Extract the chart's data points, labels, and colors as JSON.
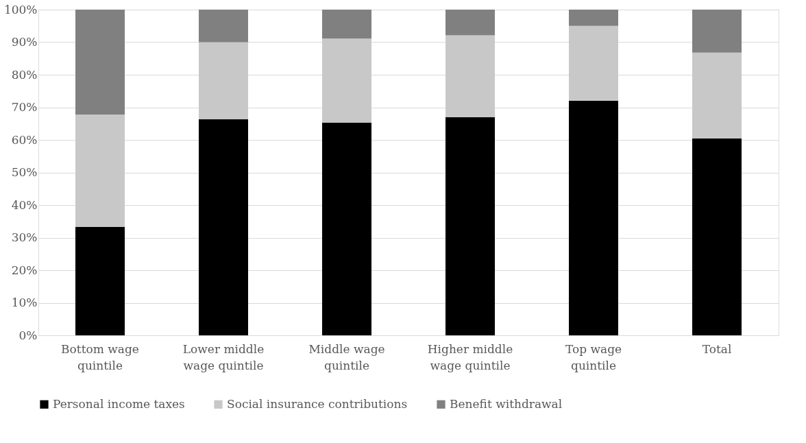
{
  "chart_data": {
    "type": "bar",
    "stacked": true,
    "categories": [
      "Bottom wage quintile",
      "Lower middle wage quintile",
      "Middle wage quintile",
      "Higher middle wage quintile",
      "Top wage quintile",
      "Total"
    ],
    "series": [
      {
        "name": "Personal income taxes",
        "color": "#000000",
        "values": [
          33.3,
          66.3,
          65.3,
          67,
          72,
          60.5
        ]
      },
      {
        "name": "Social insurance contributions",
        "color": "#c8c8c8",
        "values": [
          34.5,
          23.7,
          25.8,
          25.1,
          23,
          26.3
        ]
      },
      {
        "name": "Benefit withdrawal",
        "color": "#808080",
        "values": [
          32.2,
          10,
          8.9,
          7.9,
          5,
          13.2
        ]
      }
    ],
    "ylim": [
      0,
      100
    ],
    "yticks": [
      {
        "value": 0,
        "label": "0%"
      },
      {
        "value": 10,
        "label": "10%"
      },
      {
        "value": 20,
        "label": "20%"
      },
      {
        "value": 30,
        "label": "30%"
      },
      {
        "value": 40,
        "label": "40%"
      },
      {
        "value": 50,
        "label": "50%"
      },
      {
        "value": 60,
        "label": "60%"
      },
      {
        "value": 70,
        "label": "70%"
      },
      {
        "value": 80,
        "label": "80%"
      },
      {
        "value": 90,
        "label": "90%"
      },
      {
        "value": 100,
        "label": "100%"
      }
    ],
    "grid": "y",
    "legend": "bottom"
  }
}
